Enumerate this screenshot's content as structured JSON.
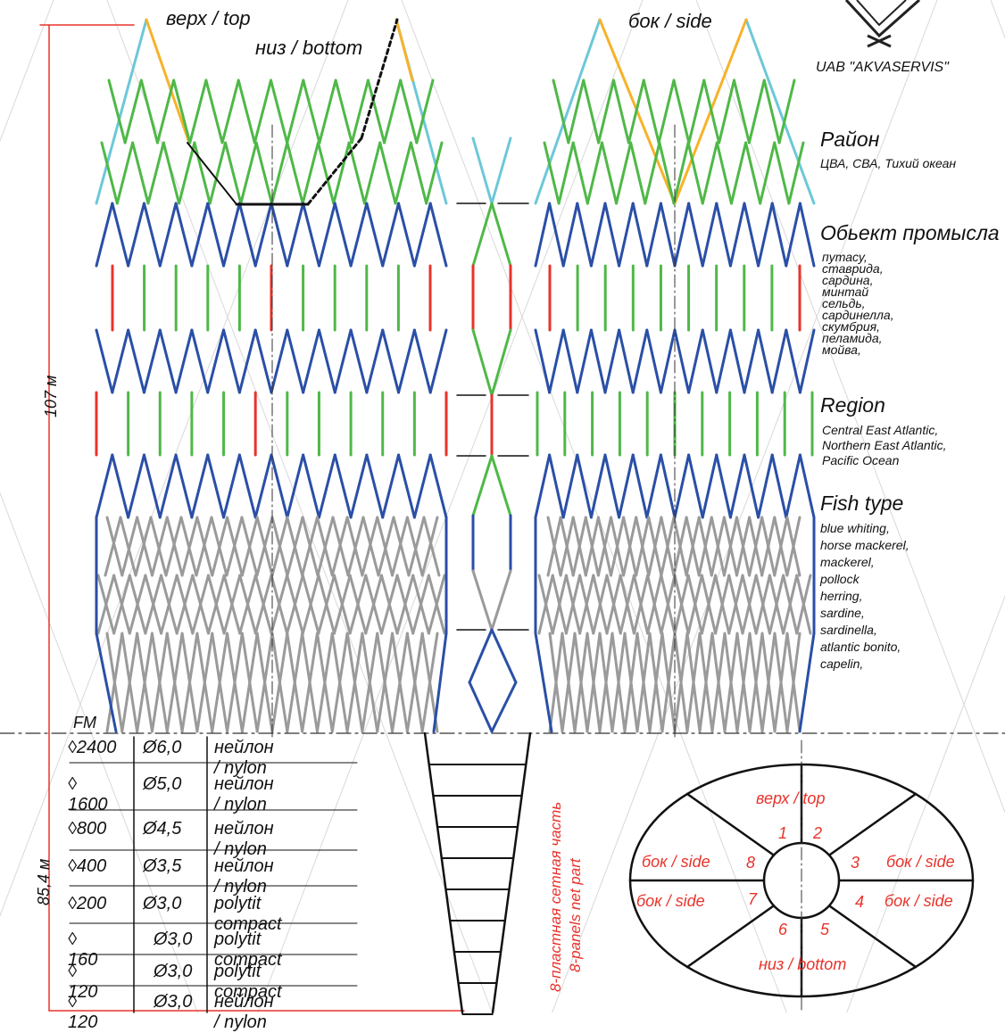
{
  "labels": {
    "top": "верх / top",
    "bottom": "низ / bottom",
    "side": "бок / side",
    "company": "UAB \"AKVASERVIS\"",
    "fm": "FM",
    "length_main": "107 м",
    "length_tail": "85,4 м"
  },
  "info": {
    "region_ru_title": "Район",
    "region_ru": "ЦВА, СВА, Тихий океан",
    "fish_ru_title": "Обьект промысла",
    "fish_ru": "путасу,\nставрида,\nсардина,\nминтай\nсельдь,\nсардинелла,\nскумбрия,\nпеламида,\nмойва,",
    "region_en_title": "Region",
    "region_en": "Central East Atlantic,\nNorthern East Atlantic,\nPacific Ocean",
    "fish_en_title": "Fish type",
    "fish_en": "blue whiting,\nhorse mackerel,\nmackerel,\npollock\nherring,\nsardine,\nsardinella,\natlantic bonito,\ncapelin,"
  },
  "specs": [
    {
      "mesh": "◊2400",
      "dia": "Ø6,0",
      "material": "нейлон / nylon"
    },
    {
      "mesh": "◊ 1600",
      "dia": "Ø5,0",
      "material": "нейлон / nylon"
    },
    {
      "mesh": "◊800",
      "dia": "Ø4,5",
      "material": "нейлон / nylon"
    },
    {
      "mesh": "◊400",
      "dia": "Ø3,5",
      "material": "нейлон / nylon"
    },
    {
      "mesh": "◊200",
      "dia": "Ø3,0",
      "material": "polytit compact"
    },
    {
      "mesh": "◊ 160",
      "dia": "Ø3,0",
      "material": "polytit compact"
    },
    {
      "mesh": "◊ 120",
      "dia": "Ø3,0",
      "material": "polytit compact"
    },
    {
      "mesh": "◊ 120",
      "dia": "Ø3,0",
      "material": "нейлон / nylon"
    }
  ],
  "tail_label": {
    "ru": "8-пластная сетная часть",
    "en": "8-panels net part"
  },
  "panel_diagram": {
    "top": "верх / top",
    "bottom": "низ / bottom",
    "side_left_upper": "бок / side",
    "side_right_upper": "бок / side",
    "side_left_lower": "бок / side",
    "side_right_lower": "бок / side",
    "numbers": [
      "1",
      "2",
      "3",
      "4",
      "5",
      "6",
      "7",
      "8"
    ]
  },
  "colors": {
    "cyan": "#6cc8d8",
    "orange": "#f7b22a",
    "green": "#4fb848",
    "blue": "#2a4fa6",
    "red": "#e8332b",
    "gray": "#9a9a9a",
    "dim_red": "#e8332b"
  }
}
